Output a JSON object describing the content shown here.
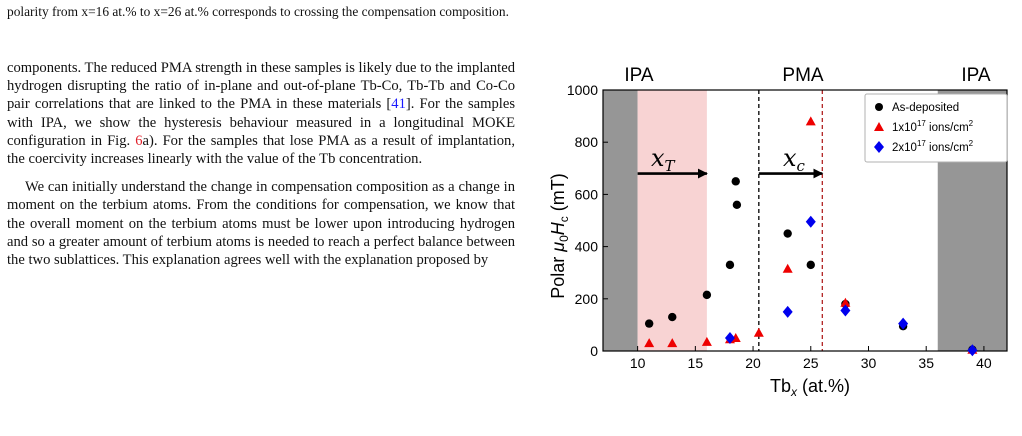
{
  "previous_caption_line": "polarity from x=16 at.% to x=26 at.% corresponds to crossing the compensation composition.",
  "body": {
    "p1": {
      "t1": "components. The reduced PMA strength in these samples is likely due to the implanted hydrogen disrupting the ratio of in-plane and out-of-plane Tb-Co, Tb-Tb and Co-Co pair correlations that are linked to the PMA in these materials [",
      "ref": "41",
      "t2": "]. For the samples with IPA, we show the hysteresis behaviour measured in a longitudinal MOKE configuration in Fig. ",
      "fig_ref": "6",
      "t3": "a). For the samples that lose PMA as a result of implantation, the coercivity increases linearly with the value of the Tb concentration."
    },
    "p2": "We can initially understand the change in compensation composition as a change in moment on the terbium atoms. From the conditions for compensation, we know that the overall moment on the terbium atoms must be lower upon introducing hydrogen and so a greater amount of terbium atoms is needed to reach a perfect balance between the two sublattices. This explanation agrees well with the explanation proposed by"
  },
  "figure": {
    "region_labels": {
      "ipa_left": "IPA",
      "pma": "PMA",
      "ipa_right": "IPA"
    },
    "arrow_labels": {
      "xT": "x",
      "xT_sub": "T",
      "xc": "x",
      "xc_sub": "c"
    },
    "ylabel": {
      "pre": "Polar ",
      "mu": "μ",
      "mu_sub": "0",
      "h": "H",
      "h_sub": "c",
      "unit": " (mT)"
    },
    "xlabel": {
      "pre": "Tb",
      "sub": "x",
      "unit": " (at.%)"
    },
    "colors": {
      "gray_band": "#969696",
      "pink_band": "#f8d3d3",
      "dashed_black": "#000000",
      "dashed_red": "#b22222",
      "as_deposited": "#000000",
      "dose1": "#ee0000",
      "dose2": "#0000ee"
    }
  },
  "chart_data": {
    "type": "scatter",
    "xlim": [
      7,
      42
    ],
    "ylim": [
      0,
      1000
    ],
    "xticks": [
      10,
      15,
      20,
      25,
      30,
      35,
      40
    ],
    "yticks": [
      0,
      200,
      400,
      600,
      800,
      1000
    ],
    "grid": false,
    "legend_position": "top-right",
    "regions": [
      {
        "label": "IPA",
        "from": 7,
        "to": 10,
        "color": "gray"
      },
      {
        "label": "IPA",
        "from": 10,
        "to": 16,
        "color": "pink"
      },
      {
        "label": "PMA",
        "from": 16,
        "to": 36,
        "color": "white"
      },
      {
        "label": "IPA",
        "from": 36,
        "to": 42,
        "color": "gray"
      }
    ],
    "vlines": [
      {
        "x": 20.5,
        "style": "dashed",
        "color": "black"
      },
      {
        "x": 26,
        "style": "dashed",
        "color": "red"
      }
    ],
    "arrows": [
      {
        "label": "xT",
        "x_from": 10,
        "x_to": 16,
        "y": 680
      },
      {
        "label": "xc",
        "x_from": 20.5,
        "x_to": 26,
        "y": 680
      }
    ],
    "series": [
      {
        "name": "As-deposited",
        "marker": "circle",
        "color": "#000000",
        "points": [
          [
            11,
            105
          ],
          [
            13,
            130
          ],
          [
            16,
            215
          ],
          [
            18,
            330
          ],
          [
            18.5,
            650
          ],
          [
            18.6,
            560
          ],
          [
            23,
            450
          ],
          [
            25,
            330
          ],
          [
            28,
            180
          ],
          [
            33,
            95
          ],
          [
            39,
            5
          ]
        ]
      },
      {
        "name": "1x10",
        "name_sup": "17",
        "name_tail": " ions/cm",
        "name_sup2": "2",
        "marker": "triangle",
        "color": "#ee0000",
        "points": [
          [
            11,
            30
          ],
          [
            13,
            30
          ],
          [
            16,
            35
          ],
          [
            18,
            45
          ],
          [
            18.5,
            50
          ],
          [
            20.5,
            70
          ],
          [
            23,
            315
          ],
          [
            25,
            880
          ],
          [
            28,
            185
          ],
          [
            39,
            5
          ]
        ]
      },
      {
        "name": "2x10",
        "name_sup": "17",
        "name_tail": " ions/cm",
        "name_sup2": "2",
        "marker": "diamond",
        "color": "#0000ee",
        "points": [
          [
            18,
            50
          ],
          [
            23,
            150
          ],
          [
            25,
            495
          ],
          [
            28,
            155
          ],
          [
            33,
            105
          ],
          [
            39,
            3
          ]
        ]
      }
    ]
  }
}
